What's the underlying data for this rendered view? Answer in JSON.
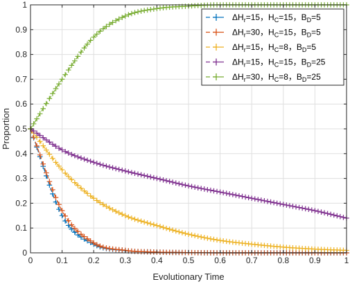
{
  "chart_data": {
    "type": "line",
    "title": "",
    "xlabel": "Evolutionary Time",
    "ylabel": "Proportion",
    "xlim": [
      0,
      1
    ],
    "ylim": [
      0,
      1
    ],
    "xticks": [
      0,
      0.1,
      0.2,
      0.3,
      0.4,
      0.5,
      0.6,
      0.7,
      0.8,
      0.9,
      1
    ],
    "xtick_labels": [
      "0",
      "0.1",
      "0.2",
      "0.3",
      "0.4",
      "0.5",
      "0.6",
      "0.7",
      "0.8",
      "0.9",
      "1"
    ],
    "yticks": [
      0,
      0.1,
      0.2,
      0.3,
      0.4,
      0.5,
      0.6,
      0.7,
      0.8,
      0.9,
      1
    ],
    "ytick_labels": [
      "0",
      "0.1",
      "0.2",
      "0.3",
      "0.4",
      "0.5",
      "0.6",
      "0.7",
      "0.8",
      "0.9",
      "1"
    ],
    "grid": true,
    "legend_position": "top-right",
    "x": [
      0,
      0.1,
      0.2,
      0.3,
      0.4,
      0.5,
      0.6,
      0.7,
      0.8,
      0.9,
      1.0
    ],
    "series": [
      {
        "legend": {
          "a": "ΔH",
          "a_sub": "r",
          "b": "=15，H",
          "b_sub": "C",
          "c": "=15，B",
          "c_sub": "D",
          "d": "=5"
        },
        "color": "#0072BD",
        "values": [
          0.5,
          0.15,
          0.035,
          0.009,
          0.003,
          0.001,
          0.0,
          0.0,
          0.0,
          0.0,
          0.0
        ]
      },
      {
        "legend": {
          "a": "ΔH",
          "a_sub": "r",
          "b": "=30，H",
          "b_sub": "C",
          "c": "=15，B",
          "c_sub": "D",
          "d": "=5"
        },
        "color": "#D95319",
        "values": [
          0.5,
          0.17,
          0.04,
          0.01,
          0.003,
          0.001,
          0.0,
          0.0,
          0.0,
          0.0,
          0.0
        ]
      },
      {
        "legend": {
          "a": "ΔH",
          "a_sub": "r",
          "b": "=15，H",
          "b_sub": "C",
          "c": "=8，B",
          "c_sub": "D",
          "d": "=5"
        },
        "color": "#EDB120",
        "values": [
          0.5,
          0.335,
          0.22,
          0.15,
          0.11,
          0.075,
          0.05,
          0.035,
          0.023,
          0.015,
          0.01
        ]
      },
      {
        "legend": {
          "a": "ΔH",
          "a_sub": "r",
          "b": "=15，H",
          "b_sub": "C",
          "c": "=15，B",
          "c_sub": "D",
          "d": "=25"
        },
        "color": "#7E2F8E",
        "values": [
          0.5,
          0.415,
          0.365,
          0.33,
          0.3,
          0.27,
          0.245,
          0.22,
          0.195,
          0.17,
          0.14
        ]
      },
      {
        "legend": {
          "a": "ΔH",
          "a_sub": "r",
          "b": "=30，H",
          "b_sub": "C",
          "c": "=8，B",
          "c_sub": "D",
          "d": "=25"
        },
        "color": "#77AC30",
        "values": [
          0.5,
          0.7,
          0.87,
          0.955,
          0.985,
          0.995,
          1.0,
          1.0,
          1.0,
          1.0,
          1.0
        ]
      }
    ]
  }
}
